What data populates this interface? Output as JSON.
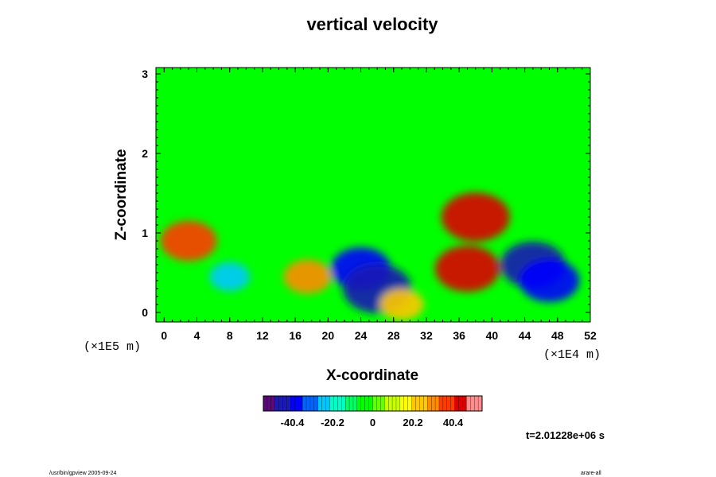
{
  "chart_data": {
    "type": "heatmap",
    "title": "vertical velocity",
    "xlabel": "X-coordinate",
    "ylabel": "Z-coordinate",
    "x_unit": "(×1E4 m)",
    "y_unit": "(×1E5 m)",
    "xlim": [
      -1,
      52
    ],
    "ylim": [
      -0.12,
      3.08
    ],
    "x_ticks": [
      "0",
      "4",
      "8",
      "12",
      "16",
      "20",
      "24",
      "28",
      "32",
      "36",
      "40",
      "44",
      "48",
      "52"
    ],
    "y_ticks": [
      "0",
      "1",
      "2",
      "3"
    ],
    "colorbar": {
      "vmin": -55,
      "vmax": 55,
      "ticks": [
        "-40.4",
        "-20.2",
        "0",
        "20.2",
        "40.4"
      ],
      "colors": [
        "#5a0a78",
        "#1a1ab4",
        "#0000ff",
        "#0064ff",
        "#00c8ff",
        "#00ffc8",
        "#00ff64",
        "#00ff00",
        "#64ff00",
        "#c8ff00",
        "#ffff00",
        "#ffc800",
        "#ff8c00",
        "#ff3c00",
        "#dc0000",
        "#ff8c8c"
      ]
    },
    "features": [
      {
        "x": 17.5,
        "z": 0.45,
        "value": 28
      },
      {
        "x": 37,
        "z": 0.55,
        "value": 42
      },
      {
        "x": 38,
        "z": 1.2,
        "value": 45
      },
      {
        "x": 3,
        "z": 0.9,
        "value": 35
      },
      {
        "x": 8,
        "z": 0.45,
        "value": -22
      },
      {
        "x": 24,
        "z": 0.55,
        "value": -38
      },
      {
        "x": 26,
        "z": 0.3,
        "value": -45
      },
      {
        "x": 45,
        "z": 0.6,
        "value": -42
      },
      {
        "x": 47,
        "z": 0.4,
        "value": -38
      },
      {
        "x": 29,
        "z": 0.1,
        "value": 25
      }
    ],
    "time_label": "t=2.01228e+06 s"
  },
  "footer": {
    "left": "/usr/bin/gpview 2005-09-24",
    "right": "arare-all"
  },
  "colors": {
    "background": "#00ff00",
    "frame": "#000000"
  }
}
